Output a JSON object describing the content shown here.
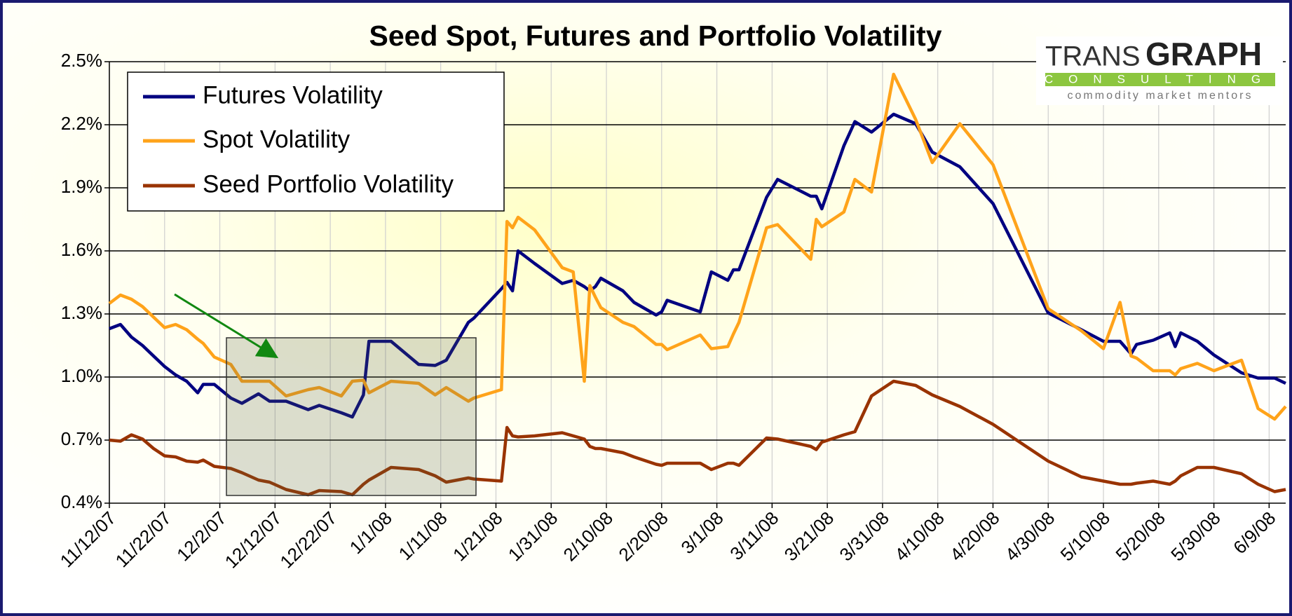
{
  "chart_data": {
    "type": "line",
    "title": "Seed Spot, Futures and Portfolio Volatility",
    "logo": [
      "TRANS",
      "GRAPH",
      "CONSULTING",
      "commodity market mentors"
    ],
    "x": [
      "11/12/07",
      "11/14/07",
      "11/16/07",
      "11/18/07",
      "11/20/07",
      "11/22/07",
      "11/24/07",
      "11/26/07",
      "11/28/07",
      "11/29/07",
      "12/1/07",
      "12/4/07",
      "12/6/07",
      "12/9/07",
      "12/11/07",
      "12/14/07",
      "12/18/07",
      "12/20/07",
      "12/24/07",
      "12/26/07",
      "12/28/07",
      "12/29/07",
      "1/2/08",
      "1/7/08",
      "1/10/08",
      "1/12/08",
      "1/16/08",
      "1/17/08",
      "1/22/08",
      "1/23/08",
      "1/24/08",
      "1/25/08",
      "1/28/08",
      "2/2/08",
      "2/4/08",
      "2/6/08",
      "2/7/08",
      "2/8/08",
      "2/9/08",
      "2/13/08",
      "2/15/08",
      "2/19/08",
      "2/20/08",
      "2/21/08",
      "2/27/08",
      "2/29/08",
      "3/3/08",
      "3/4/08",
      "3/5/08",
      "3/10/08",
      "3/12/08",
      "3/18/08",
      "3/19/08",
      "3/20/08",
      "3/24/08",
      "3/26/08",
      "3/29/08",
      "4/2/08",
      "4/6/08",
      "4/9/08",
      "4/14/08",
      "4/20/08",
      "4/30/08",
      "5/6/08",
      "5/10/08",
      "5/13/08",
      "5/15/08",
      "5/16/08",
      "5/19/08",
      "5/22/08",
      "5/23/08",
      "5/24/08",
      "5/27/08",
      "5/30/08",
      "6/4/08",
      "6/7/08",
      "6/10/08",
      "6/12/08"
    ],
    "series": [
      {
        "name": "Futures Volatility",
        "color": "#000080",
        "values": [
          1.23,
          1.25,
          1.19,
          1.15,
          1.1,
          1.05,
          1.01,
          0.98,
          0.925,
          0.965,
          0.965,
          0.9,
          0.875,
          0.92,
          0.885,
          0.885,
          0.845,
          0.865,
          0.83,
          0.81,
          0.915,
          1.17,
          1.17,
          1.06,
          1.055,
          1.08,
          1.26,
          1.28,
          1.42,
          1.45,
          1.41,
          1.6,
          1.54,
          1.445,
          1.46,
          1.43,
          1.41,
          1.43,
          1.47,
          1.41,
          1.355,
          1.295,
          1.31,
          1.365,
          1.31,
          1.5,
          1.46,
          1.51,
          1.51,
          1.855,
          1.94,
          1.86,
          1.86,
          1.8,
          2.1,
          2.215,
          2.165,
          2.25,
          2.205,
          2.07,
          2.0,
          1.825,
          1.305,
          1.225,
          1.17,
          1.17,
          1.11,
          1.155,
          1.175,
          1.21,
          1.145,
          1.21,
          1.17,
          1.105,
          1.02,
          0.995,
          0.995,
          0.97
        ]
      },
      {
        "name": "Spot Volatility",
        "color": "#ffa31a",
        "values": [
          1.35,
          1.39,
          1.37,
          1.335,
          1.285,
          1.235,
          1.25,
          1.225,
          1.18,
          1.16,
          1.095,
          1.06,
          0.98,
          0.98,
          0.98,
          0.91,
          0.94,
          0.95,
          0.91,
          0.98,
          0.985,
          0.925,
          0.98,
          0.97,
          0.915,
          0.95,
          0.885,
          0.9,
          0.94,
          1.74,
          1.71,
          1.76,
          1.7,
          1.52,
          1.5,
          0.98,
          1.435,
          1.38,
          1.33,
          1.26,
          1.24,
          1.155,
          1.155,
          1.13,
          1.2,
          1.135,
          1.145,
          1.205,
          1.26,
          1.71,
          1.725,
          1.56,
          1.75,
          1.715,
          1.785,
          1.94,
          1.88,
          2.44,
          2.225,
          2.02,
          2.205,
          2.01,
          1.325,
          1.22,
          1.135,
          1.355,
          1.1,
          1.09,
          1.03,
          1.03,
          1.01,
          1.04,
          1.065,
          1.03,
          1.08,
          0.85,
          0.8,
          0.86
        ]
      },
      {
        "name": "Seed Portfolio Volatility",
        "color": "#993300",
        "values": [
          0.7,
          0.695,
          0.725,
          0.705,
          0.66,
          0.625,
          0.62,
          0.6,
          0.595,
          0.605,
          0.575,
          0.565,
          0.545,
          0.51,
          0.5,
          0.465,
          0.44,
          0.46,
          0.455,
          0.44,
          0.49,
          0.51,
          0.57,
          0.56,
          0.53,
          0.5,
          0.52,
          0.515,
          0.505,
          0.76,
          0.72,
          0.715,
          0.72,
          0.735,
          0.72,
          0.705,
          0.67,
          0.66,
          0.66,
          0.64,
          0.62,
          0.585,
          0.58,
          0.59,
          0.59,
          0.56,
          0.59,
          0.59,
          0.58,
          0.71,
          0.705,
          0.67,
          0.655,
          0.69,
          0.725,
          0.74,
          0.91,
          0.98,
          0.96,
          0.915,
          0.86,
          0.775,
          0.6,
          0.525,
          0.505,
          0.49,
          0.49,
          0.495,
          0.505,
          0.49,
          0.505,
          0.53,
          0.57,
          0.57,
          0.54,
          0.49,
          0.455,
          0.465
        ]
      }
    ],
    "xlim": [
      "11/12/07",
      "6/12/08"
    ],
    "xticks": [
      "11/12/07",
      "11/22/07",
      "12/2/07",
      "12/12/07",
      "12/22/07",
      "1/1/08",
      "1/11/08",
      "1/21/08",
      "1/31/08",
      "2/10/08",
      "2/20/08",
      "3/1/08",
      "3/11/08",
      "3/21/08",
      "3/31/08",
      "4/10/08",
      "4/20/08",
      "4/30/08",
      "5/10/08",
      "5/20/08",
      "5/30/08",
      "6/9/08"
    ],
    "ylim": [
      0.4,
      2.5
    ],
    "yticks": [
      {
        "value": 0.4,
        "label": "0.4%"
      },
      {
        "value": 0.7,
        "label": "0.7%"
      },
      {
        "value": 1.0,
        "label": "1.0%"
      },
      {
        "value": 1.3,
        "label": "1.3%"
      },
      {
        "value": 1.6,
        "label": "1.6%"
      },
      {
        "value": 1.9,
        "label": "1.9%"
      },
      {
        "value": 2.2,
        "label": "2.2%"
      },
      {
        "value": 2.5,
        "label": "2.5%"
      }
    ],
    "grid": true,
    "legend": "upper left"
  }
}
